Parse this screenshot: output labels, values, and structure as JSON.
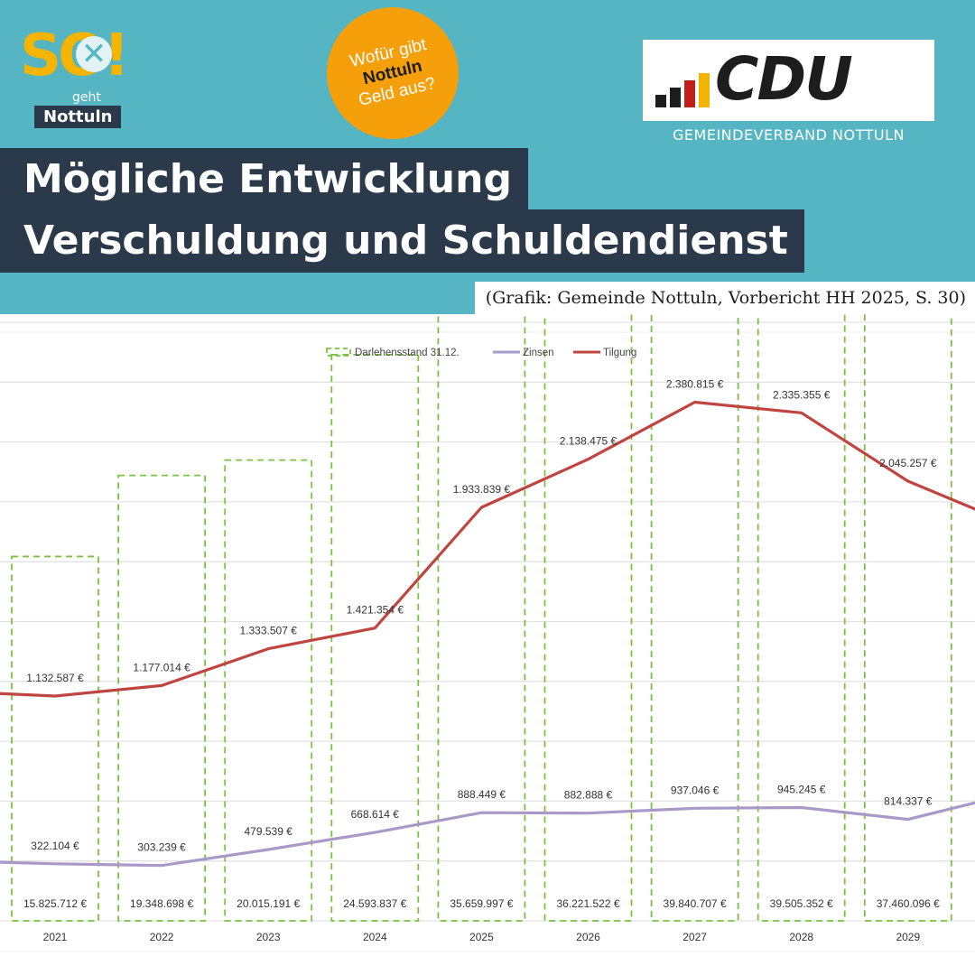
{
  "brand": {
    "so_logo": "SO!",
    "so_sub1": "geht",
    "so_sub2": "Nottuln",
    "bubble_line1": "Wofür gibt",
    "bubble_line2": "Nottuln",
    "bubble_line3": "Geld aus?",
    "cdu_logo": "CDU",
    "cdu_sub": "GEMEINDEVERBAND NOTTULN"
  },
  "title_line1": "Mögliche Entwicklung",
  "title_line2": "Verschuldung und Schuldendienst",
  "source": "(Grafik: Gemeinde Nottuln, Vorbericht HH 2025, S. 30)",
  "colors": {
    "header_bg": "#55b5c3",
    "title_bg": "#2b3a4a",
    "darlehen": "#7ac142",
    "zinsen": "#a999c8",
    "tilgung": "#c0443f"
  },
  "chart_data": {
    "type": "bar",
    "categories": [
      "2021",
      "2022",
      "2023",
      "2024",
      "2025",
      "2026",
      "2027",
      "2028",
      "2029"
    ],
    "legend": "top",
    "grid": true,
    "series": [
      {
        "name": "Darlehensstand 31.12.",
        "mark": "bar",
        "values": [
          15825712,
          19348698,
          20015191,
          24593837,
          35659997,
          36221522,
          39840707,
          39505352,
          37460096
        ],
        "labels": [
          "15.825.712 €",
          "19.348.698 €",
          "20.015.191 €",
          "24.593.837 €",
          "35.659.997 €",
          "36.221.522 €",
          "39.840.707 €",
          "39.505.352 €",
          "37.460.096 €"
        ]
      },
      {
        "name": "Zinsen",
        "mark": "line",
        "values": [
          322104,
          303239,
          479539,
          668614,
          888449,
          882888,
          937046,
          945245,
          814337
        ],
        "labels": [
          "322.104 €",
          "303.239 €",
          "479.539 €",
          "668.614 €",
          "888.449 €",
          "882.888 €",
          "937.046 €",
          "945.245 €",
          "814.337 €"
        ]
      },
      {
        "name": "Tilgung",
        "mark": "line",
        "values": [
          1132587,
          1177014,
          1333507,
          1421354,
          1933839,
          2138475,
          2380815,
          2335355,
          2045257
        ],
        "labels": [
          "1.132.587 €",
          "1.177.014 €",
          "1.333.507 €",
          "1.421.354 €",
          "1.933.839 €",
          "2.138.475 €",
          "2.380.815 €",
          "2.335.355 €",
          "2.045.257 €"
        ]
      }
    ]
  }
}
